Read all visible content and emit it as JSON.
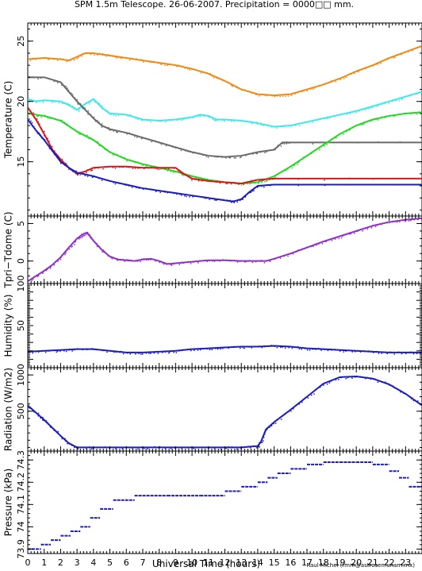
{
  "title": "SPM 1.5m Telescope. 26-06-2007. Precipitation = 0000□□ mm.",
  "xlabel": "Universal Time (hours)",
  "credit": "Raul Michel (rmm@astrosen.unam.mx)",
  "chart_data": [
    {
      "id": "temperature",
      "type": "line",
      "ylabel": "Temperature (C)",
      "ylim": [
        10.5,
        26.5
      ],
      "yticks": [
        15,
        20,
        25
      ],
      "xlim": [
        0,
        24
      ],
      "series": [
        {
          "color": "#f08a14",
          "x": [
            0,
            1,
            2,
            2.5,
            3,
            3.5,
            4,
            5,
            6,
            7,
            8,
            9,
            10,
            11,
            12,
            13,
            14,
            15,
            16,
            17,
            18,
            19,
            20,
            21,
            22,
            23,
            24
          ],
          "y": [
            23.5,
            23.6,
            23.5,
            23.4,
            23.7,
            24.0,
            24.0,
            23.8,
            23.6,
            23.4,
            23.2,
            23.0,
            22.7,
            22.3,
            21.7,
            21.0,
            20.6,
            20.5,
            20.6,
            21.0,
            21.4,
            21.9,
            22.5,
            23.0,
            23.6,
            24.1,
            24.6
          ]
        },
        {
          "color": "#40e8ec",
          "x": [
            0,
            0.5,
            1,
            2,
            2.5,
            3,
            3.5,
            4,
            4.5,
            5,
            6,
            7,
            8,
            9,
            10,
            10.5,
            11,
            11.5,
            12,
            13,
            14,
            15,
            16,
            17,
            18,
            19,
            20,
            21,
            22,
            23,
            24
          ],
          "y": [
            20.2,
            20.0,
            20.1,
            20.0,
            19.7,
            19.3,
            19.8,
            20.2,
            19.5,
            19.0,
            18.9,
            18.5,
            18.4,
            18.5,
            18.7,
            18.9,
            18.8,
            18.5,
            18.5,
            18.4,
            18.2,
            17.9,
            18.0,
            18.3,
            18.6,
            18.9,
            19.2,
            19.6,
            20.0,
            20.4,
            20.8
          ]
        },
        {
          "color": "#6a6a6a",
          "x": [
            0,
            1,
            2,
            2.5,
            3,
            3.5,
            4,
            4.5,
            5,
            6,
            7,
            8,
            9,
            10,
            11,
            12,
            13,
            14,
            15,
            15.5,
            16,
            24
          ],
          "y": [
            22.0,
            22.0,
            21.6,
            20.8,
            20.0,
            19.3,
            18.6,
            18.0,
            17.7,
            17.4,
            17.0,
            16.6,
            16.2,
            15.8,
            15.5,
            15.4,
            15.5,
            15.8,
            16.0,
            16.6,
            16.6,
            16.6
          ]
        },
        {
          "color": "#22d822",
          "x": [
            0,
            1,
            2,
            3,
            4,
            5,
            6,
            7,
            8,
            9,
            10,
            11,
            12,
            13,
            14,
            15,
            16,
            17,
            18,
            19,
            20,
            21,
            22,
            23,
            24
          ],
          "y": [
            19.0,
            18.8,
            18.4,
            17.5,
            16.8,
            15.8,
            15.2,
            14.8,
            14.5,
            14.2,
            13.8,
            13.5,
            13.3,
            13.2,
            13.3,
            13.8,
            14.6,
            15.5,
            16.4,
            17.3,
            18.0,
            18.5,
            18.8,
            19.0,
            19.1
          ]
        },
        {
          "color": "#d41a1a",
          "x": [
            0,
            0.5,
            1,
            1.5,
            2,
            2.5,
            3,
            3.5,
            4,
            5,
            6,
            7,
            8,
            9,
            9.5,
            10,
            11,
            12,
            13,
            14,
            15,
            24
          ],
          "y": [
            19.5,
            18.5,
            17.3,
            16.0,
            15.2,
            14.5,
            14.0,
            14.2,
            14.5,
            14.6,
            14.6,
            14.5,
            14.5,
            14.5,
            14.0,
            13.6,
            13.4,
            13.3,
            13.2,
            13.5,
            13.6,
            13.6
          ]
        },
        {
          "color": "#1c1cc0",
          "x": [
            0,
            0.5,
            1,
            1.5,
            2,
            2.5,
            3,
            4,
            5,
            6,
            7,
            8,
            9,
            10,
            11,
            12,
            12.5,
            13,
            13.5,
            14,
            15,
            24
          ],
          "y": [
            18.5,
            17.6,
            16.8,
            15.9,
            15.0,
            14.5,
            14.1,
            13.8,
            13.4,
            13.1,
            12.8,
            12.6,
            12.4,
            12.2,
            12.0,
            11.8,
            11.7,
            11.9,
            12.5,
            13.0,
            13.1,
            13.1
          ]
        }
      ]
    },
    {
      "id": "tpri-tdome",
      "type": "line",
      "ylabel": "Tpri−Tdome (C)",
      "ylim": [
        -3,
        6
      ],
      "yticks": [
        0,
        5
      ],
      "xlim": [
        0,
        24
      ],
      "series": [
        {
          "color": "#9030c8",
          "x": [
            0,
            0.5,
            1,
            1.5,
            2,
            2.5,
            3,
            3.3,
            3.6,
            4,
            4.5,
            5,
            5.5,
            6,
            6.5,
            7,
            7.5,
            8,
            8.5,
            9,
            10,
            11,
            12,
            13,
            14,
            14.5,
            15,
            16,
            17,
            18,
            19,
            20,
            21,
            22,
            23,
            24
          ],
          "y": [
            -2.7,
            -2.0,
            -1.3,
            -0.5,
            0.5,
            1.8,
            3.0,
            3.5,
            3.8,
            2.7,
            1.5,
            0.6,
            0.2,
            0.1,
            0.0,
            0.2,
            0.3,
            0.0,
            -0.4,
            -0.3,
            -0.1,
            0.1,
            0.1,
            0.0,
            0.0,
            0.0,
            0.3,
            1.0,
            1.8,
            2.6,
            3.3,
            4.0,
            4.7,
            5.2,
            5.5,
            5.7
          ]
        }
      ]
    },
    {
      "id": "humidity",
      "type": "line",
      "ylabel": "Humidity (%)",
      "ylim": [
        0,
        100
      ],
      "yticks": [
        0,
        10,
        20,
        30,
        40,
        50,
        60,
        70,
        80,
        90,
        100
      ],
      "yticklabels": [
        "",
        "",
        "",
        "",
        "",
        "50",
        "",
        "",
        "",
        "",
        "100"
      ],
      "xlim": [
        0,
        24
      ],
      "series": [
        {
          "color": "#1c1cc0",
          "x": [
            0,
            1,
            2,
            3,
            4,
            5,
            6,
            7,
            8,
            9,
            10,
            11,
            12,
            13,
            14,
            15,
            16,
            17,
            18,
            19,
            20,
            21,
            22,
            23,
            24
          ],
          "y": [
            19,
            20,
            21,
            22,
            22,
            20,
            18,
            18,
            19,
            20,
            22,
            23,
            24,
            25,
            25,
            26,
            25,
            23,
            22,
            21,
            20,
            19,
            18,
            18,
            18
          ]
        }
      ]
    },
    {
      "id": "radiation",
      "type": "line",
      "ylabel": "Radiation (W/m2)",
      "ylim": [
        -50,
        1100
      ],
      "yticks": [
        500,
        1000
      ],
      "xlim": [
        0,
        24
      ],
      "series": [
        {
          "color": "#1c1cc0",
          "x": [
            0,
            0.5,
            1,
            1.5,
            2,
            2.5,
            3,
            4,
            6,
            8,
            10,
            12,
            13,
            14,
            14.2,
            14.5,
            15,
            16,
            17,
            18,
            19,
            20,
            21,
            22,
            23,
            24
          ],
          "y": [
            580,
            480,
            380,
            270,
            160,
            60,
            0,
            0,
            0,
            0,
            0,
            0,
            0,
            20,
            80,
            250,
            350,
            520,
            700,
            880,
            970,
            980,
            950,
            870,
            740,
            580
          ]
        }
      ]
    },
    {
      "id": "pressure",
      "type": "scatter",
      "ylabel": "Pressure (kPa)",
      "ylim": [
        73.88,
        74.34
      ],
      "yticks": [
        73.9,
        74,
        74.1,
        74.2,
        74.3
      ],
      "yticklabels": [
        "73.9",
        "74",
        "74.1",
        "74.2",
        "74.3"
      ],
      "xlim": [
        0,
        24
      ],
      "series": [
        {
          "color": "#1c1cc0",
          "x": [
            0,
            0.8,
            1.4,
            2,
            2.6,
            3.2,
            3.8,
            4.4,
            5.2,
            6.5,
            8.5,
            10.5,
            12,
            13,
            14,
            14.6,
            15.2,
            16,
            17,
            18,
            19,
            20,
            21,
            22,
            22.6,
            23.2,
            24
          ],
          "y": [
            73.9,
            73.92,
            73.94,
            73.96,
            73.98,
            74.0,
            74.04,
            74.08,
            74.12,
            74.14,
            74.14,
            74.14,
            74.16,
            74.18,
            74.2,
            74.22,
            74.24,
            74.26,
            74.28,
            74.29,
            74.29,
            74.29,
            74.28,
            74.25,
            74.22,
            74.18,
            74.14
          ]
        }
      ]
    }
  ]
}
